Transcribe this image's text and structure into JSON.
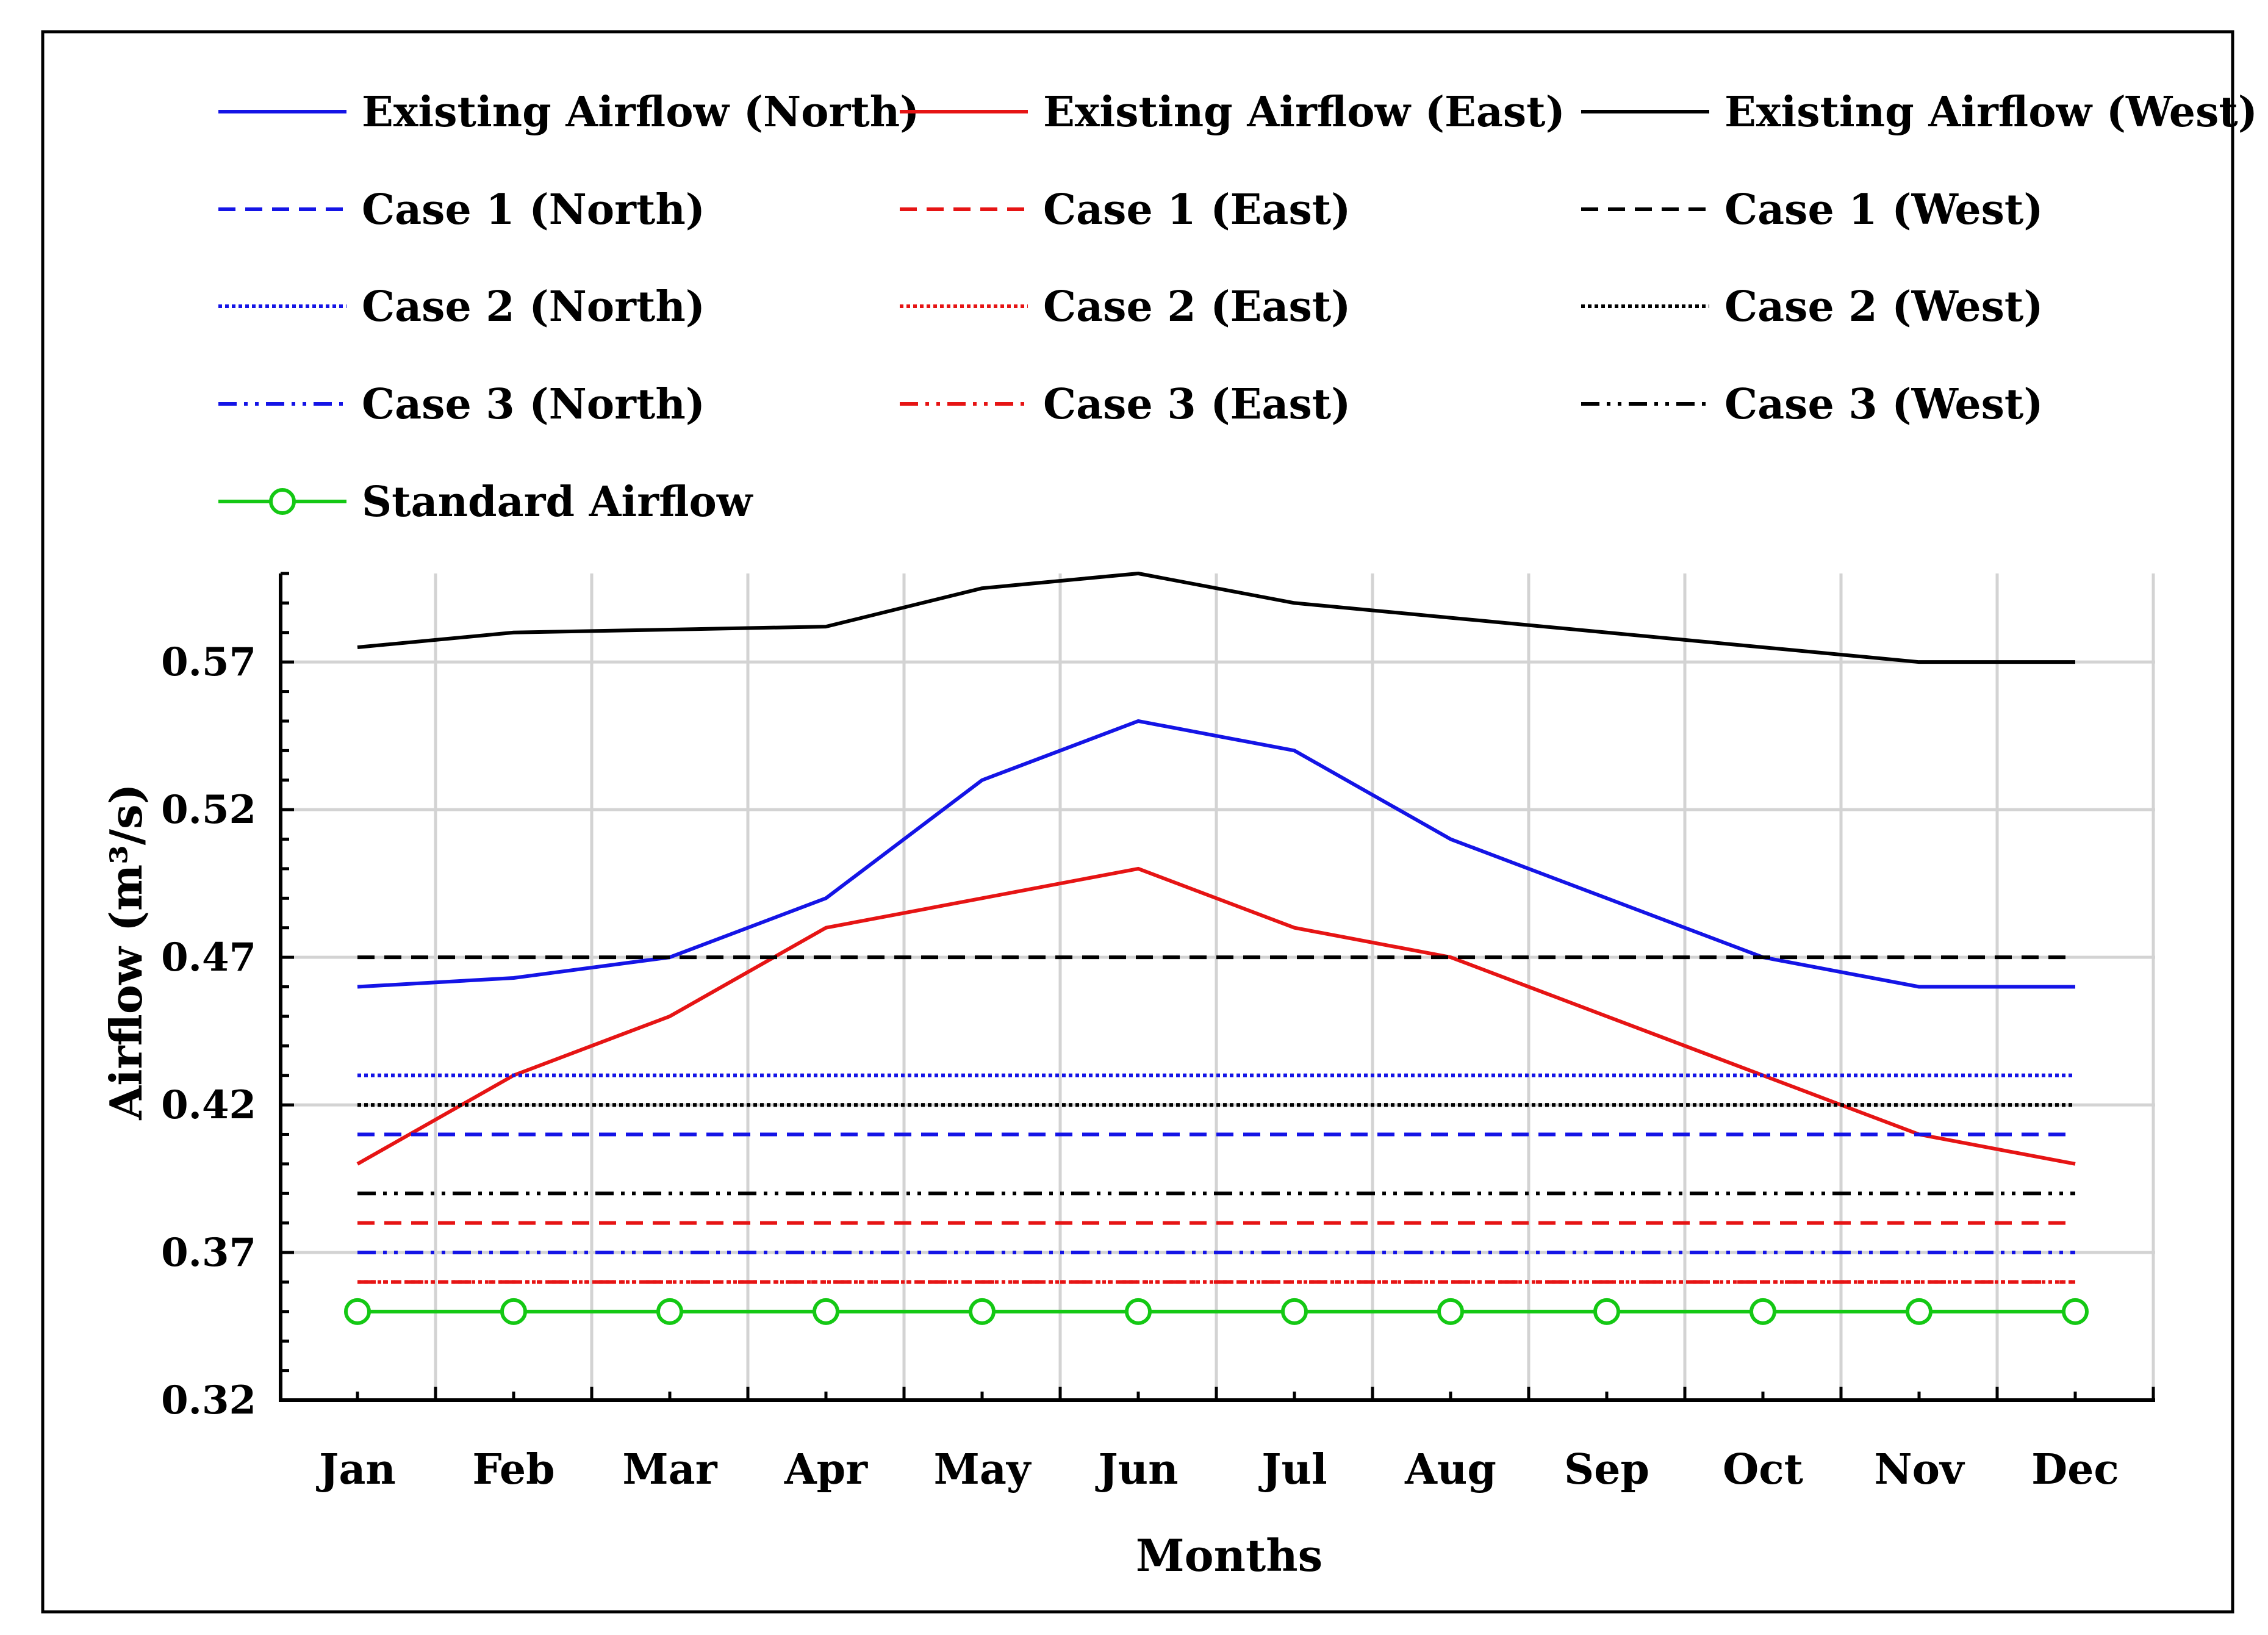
{
  "chart_data": {
    "type": "line",
    "xlabel": "Months",
    "ylabel": "Airflow (m³/s)",
    "categories": [
      "Jan",
      "Feb",
      "Mar",
      "Apr",
      "May",
      "Jun",
      "Jul",
      "Aug",
      "Sep",
      "Oct",
      "Nov",
      "Dec"
    ],
    "ylim": [
      0.32,
      0.6
    ],
    "yticks": [
      0.32,
      0.37,
      0.42,
      0.47,
      0.52,
      0.57
    ],
    "ytick_labels": [
      "0.32",
      "0.37",
      "0.42",
      "0.47",
      "0.52",
      "0.57"
    ],
    "grid": true,
    "legend_position": "top",
    "series": [
      {
        "name": "Existing Airflow (North)",
        "color": "#1414e6",
        "style": "solid",
        "values": [
          0.46,
          0.463,
          0.47,
          0.49,
          0.53,
          0.55,
          0.54,
          0.51,
          0.49,
          0.47,
          0.46,
          0.46
        ]
      },
      {
        "name": "Existing Airflow (East)",
        "color": "#e61414",
        "style": "solid",
        "values": [
          0.4,
          0.43,
          0.45,
          0.48,
          0.49,
          0.5,
          0.48,
          0.47,
          0.45,
          0.43,
          0.41,
          0.4
        ]
      },
      {
        "name": "Existing Airflow (West)",
        "color": "#000000",
        "style": "solid",
        "values": [
          0.575,
          0.58,
          0.581,
          0.582,
          0.595,
          0.6,
          0.59,
          0.585,
          0.58,
          0.575,
          0.57,
          0.57
        ]
      },
      {
        "name": "Case 1 (North)",
        "color": "#1414e6",
        "style": "dashed",
        "values": [
          0.41,
          0.41,
          0.41,
          0.41,
          0.41,
          0.41,
          0.41,
          0.41,
          0.41,
          0.41,
          0.41,
          0.41
        ]
      },
      {
        "name": "Case 1 (East)",
        "color": "#e61414",
        "style": "dashed",
        "values": [
          0.38,
          0.38,
          0.38,
          0.38,
          0.38,
          0.38,
          0.38,
          0.38,
          0.38,
          0.38,
          0.38,
          0.38
        ]
      },
      {
        "name": "Case 1 (West)",
        "color": "#000000",
        "style": "dashed",
        "values": [
          0.47,
          0.47,
          0.47,
          0.47,
          0.47,
          0.47,
          0.47,
          0.47,
          0.47,
          0.47,
          0.47,
          0.47
        ]
      },
      {
        "name": "Case 2 (North)",
        "color": "#1414e6",
        "style": "dotted",
        "values": [
          0.43,
          0.43,
          0.43,
          0.43,
          0.43,
          0.43,
          0.43,
          0.43,
          0.43,
          0.43,
          0.43,
          0.43
        ]
      },
      {
        "name": "Case 2 (East)",
        "color": "#e61414",
        "style": "dotted",
        "values": [
          0.36,
          0.36,
          0.36,
          0.36,
          0.36,
          0.36,
          0.36,
          0.36,
          0.36,
          0.36,
          0.36,
          0.36
        ]
      },
      {
        "name": "Case 2 (West)",
        "color": "#000000",
        "style": "dotted",
        "values": [
          0.42,
          0.42,
          0.42,
          0.42,
          0.42,
          0.42,
          0.42,
          0.42,
          0.42,
          0.42,
          0.42,
          0.42
        ]
      },
      {
        "name": "Case 3 (North)",
        "color": "#1414e6",
        "style": "dashdotdot",
        "values": [
          0.37,
          0.37,
          0.37,
          0.37,
          0.37,
          0.37,
          0.37,
          0.37,
          0.37,
          0.37,
          0.37,
          0.37
        ]
      },
      {
        "name": "Case 3 (East)",
        "color": "#e61414",
        "style": "dashdotdot",
        "values": [
          0.36,
          0.36,
          0.36,
          0.36,
          0.36,
          0.36,
          0.36,
          0.36,
          0.36,
          0.36,
          0.36,
          0.36
        ]
      },
      {
        "name": "Case 3 (West)",
        "color": "#000000",
        "style": "dashdotdot",
        "values": [
          0.39,
          0.39,
          0.39,
          0.39,
          0.39,
          0.39,
          0.39,
          0.39,
          0.39,
          0.39,
          0.39,
          0.39
        ]
      },
      {
        "name": "Standard Airflow",
        "color": "#14c814",
        "style": "solid",
        "marker": "circle",
        "values": [
          0.35,
          0.35,
          0.35,
          0.35,
          0.35,
          0.35,
          0.35,
          0.35,
          0.35,
          0.35,
          0.35,
          0.35
        ]
      }
    ]
  }
}
